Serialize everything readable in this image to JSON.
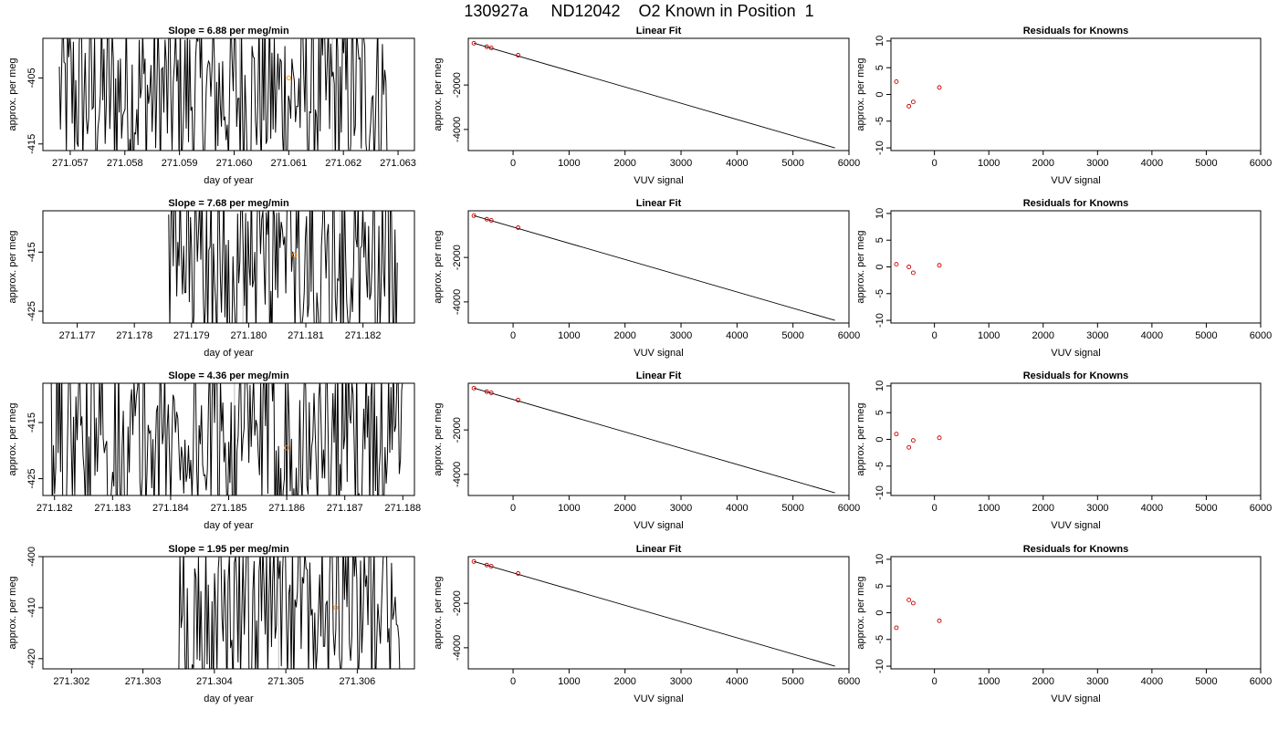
{
  "page": {
    "title": "130927a     ND12042    O2 Known in Position  1"
  },
  "colors": {
    "line": "#000000",
    "known_point": "#cc0000",
    "marker_point": "#ff8c00",
    "vline": "#bebebe"
  },
  "chart_data": [
    {
      "row": 1,
      "type": "line",
      "kind": "timeseries",
      "title": "Slope =  6.88  per meg/min",
      "xlabel": "day of year",
      "ylabel": "approx. per meg",
      "xlim": [
        271.0565,
        271.0633
      ],
      "ylim": [
        -416,
        -399
      ],
      "xticks": [
        "271.057",
        "271.058",
        "271.059",
        "271.060",
        "271.061",
        "271.062",
        "271.063"
      ],
      "yticks": [
        "-405",
        "-415"
      ],
      "xtick_values": [
        271.057,
        271.058,
        271.059,
        271.06,
        271.061,
        271.062,
        271.063
      ],
      "ytick_values": [
        -405,
        -415
      ],
      "series_start": 271.0568,
      "series_end": 271.0628,
      "series_points": 280,
      "vlines": [
        271.0601,
        271.0618
      ],
      "marker": {
        "x": 271.061,
        "y": -405
      }
    },
    {
      "row": 1,
      "type": "scatter",
      "kind": "linear_fit",
      "title": "Linear Fit",
      "xlabel": "VUV signal",
      "ylabel": "approx. per meg",
      "xlim": [
        -800,
        6000
      ],
      "ylim": [
        -4950,
        100
      ],
      "xticks": [
        "0",
        "1000",
        "2000",
        "3000",
        "4000",
        "5000",
        "6000"
      ],
      "yticks": [
        "-2000",
        "-4000"
      ],
      "xtick_values": [
        0,
        1000,
        2000,
        3000,
        4000,
        5000,
        6000
      ],
      "ytick_values": [
        -2000,
        -4000
      ],
      "points": [
        {
          "x": -700,
          "y": -120
        },
        {
          "x": -470,
          "y": -280
        },
        {
          "x": -390,
          "y": -330
        },
        {
          "x": 90,
          "y": -660
        }
      ],
      "fit_line": {
        "x": [
          -700,
          5750
        ],
        "y": [
          -120,
          -4830
        ]
      }
    },
    {
      "row": 1,
      "type": "scatter",
      "kind": "residuals",
      "title": "Residuals for Knowns",
      "xlabel": "VUV signal",
      "ylabel": "approx. per meg",
      "xlim": [
        -800,
        6000
      ],
      "ylim": [
        -10.5,
        10.5
      ],
      "xticks": [
        "0",
        "1000",
        "2000",
        "3000",
        "4000",
        "5000",
        "6000"
      ],
      "yticks": [
        "-10",
        "-5",
        "0",
        "5",
        "10"
      ],
      "xtick_values": [
        0,
        1000,
        2000,
        3000,
        4000,
        5000,
        6000
      ],
      "ytick_values": [
        -10,
        -5,
        0,
        5,
        10
      ],
      "points": [
        {
          "x": -700,
          "y": 2.4
        },
        {
          "x": -470,
          "y": -2.2
        },
        {
          "x": -390,
          "y": -1.4
        },
        {
          "x": 90,
          "y": 1.3
        }
      ]
    },
    {
      "row": 2,
      "type": "line",
      "kind": "timeseries",
      "title": "Slope =  7.68  per meg/min",
      "xlabel": "day of year",
      "ylabel": "approx. per meg",
      "xlim": [
        271.1764,
        271.1829
      ],
      "ylim": [
        -427,
        -408
      ],
      "xticks": [
        "271.177",
        "271.178",
        "271.179",
        "271.180",
        "271.181",
        "271.182"
      ],
      "yticks": [
        "-415",
        "-425"
      ],
      "xtick_values": [
        271.177,
        271.178,
        271.179,
        271.18,
        271.181,
        271.182
      ],
      "ytick_values": [
        -415,
        -425
      ],
      "series_start": 271.1786,
      "series_end": 271.1826,
      "series_points": 200,
      "vlines": [
        271.1799,
        271.1816
      ],
      "marker": {
        "x": 271.1808,
        "y": -415.5
      }
    },
    {
      "row": 2,
      "type": "scatter",
      "kind": "linear_fit",
      "title": "Linear Fit",
      "xlabel": "VUV signal",
      "ylabel": "approx. per meg",
      "xlim": [
        -800,
        6000
      ],
      "ylim": [
        -4950,
        100
      ],
      "xticks": [
        "0",
        "1000",
        "2000",
        "3000",
        "4000",
        "5000",
        "6000"
      ],
      "yticks": [
        "-2000",
        "-4000"
      ],
      "xtick_values": [
        0,
        1000,
        2000,
        3000,
        4000,
        5000,
        6000
      ],
      "ytick_values": [
        -2000,
        -4000
      ],
      "points": [
        {
          "x": -700,
          "y": -120
        },
        {
          "x": -470,
          "y": -280
        },
        {
          "x": -390,
          "y": -330
        },
        {
          "x": 90,
          "y": -660
        }
      ],
      "fit_line": {
        "x": [
          -700,
          5750
        ],
        "y": [
          -120,
          -4830
        ]
      }
    },
    {
      "row": 2,
      "type": "scatter",
      "kind": "residuals",
      "title": "Residuals for Knowns",
      "xlabel": "VUV signal",
      "ylabel": "approx. per meg",
      "xlim": [
        -800,
        6000
      ],
      "ylim": [
        -10.5,
        10.5
      ],
      "xticks": [
        "0",
        "1000",
        "2000",
        "3000",
        "4000",
        "5000",
        "6000"
      ],
      "yticks": [
        "-10",
        "-5",
        "0",
        "5",
        "10"
      ],
      "xtick_values": [
        0,
        1000,
        2000,
        3000,
        4000,
        5000,
        6000
      ],
      "ytick_values": [
        -10,
        -5,
        0,
        5,
        10
      ],
      "points": [
        {
          "x": -700,
          "y": 0.5
        },
        {
          "x": -470,
          "y": 0.0
        },
        {
          "x": -390,
          "y": -1.1
        },
        {
          "x": 90,
          "y": 0.3
        }
      ]
    },
    {
      "row": 3,
      "type": "line",
      "kind": "timeseries",
      "title": "Slope =  4.36  per meg/min",
      "xlabel": "day of year",
      "ylabel": "approx. per meg",
      "xlim": [
        271.1818,
        271.1882
      ],
      "ylim": [
        -428,
        -408
      ],
      "xticks": [
        "271.182",
        "271.183",
        "271.184",
        "271.185",
        "271.186",
        "271.187",
        "271.188"
      ],
      "yticks": [
        "-415",
        "-425"
      ],
      "xtick_values": [
        271.182,
        271.183,
        271.184,
        271.185,
        271.186,
        271.187,
        271.188
      ],
      "ytick_values": [
        -415,
        -425
      ],
      "series_start": 271.1819,
      "series_end": 271.188,
      "series_points": 300,
      "vlines": [
        271.1851
      ],
      "marker": {
        "x": 271.186,
        "y": -419.5
      }
    },
    {
      "row": 3,
      "type": "scatter",
      "kind": "linear_fit",
      "title": "Linear Fit",
      "xlabel": "VUV signal",
      "ylabel": "approx. per meg",
      "xlim": [
        -800,
        6000
      ],
      "ylim": [
        -4950,
        100
      ],
      "xticks": [
        "0",
        "1000",
        "2000",
        "3000",
        "4000",
        "5000",
        "6000"
      ],
      "yticks": [
        "-2000",
        "-4000"
      ],
      "xtick_values": [
        0,
        1000,
        2000,
        3000,
        4000,
        5000,
        6000
      ],
      "ytick_values": [
        -2000,
        -4000
      ],
      "points": [
        {
          "x": -700,
          "y": -120
        },
        {
          "x": -470,
          "y": -280
        },
        {
          "x": -390,
          "y": -330
        },
        {
          "x": 90,
          "y": -660
        }
      ],
      "fit_line": {
        "x": [
          -700,
          5750
        ],
        "y": [
          -120,
          -4830
        ]
      }
    },
    {
      "row": 3,
      "type": "scatter",
      "kind": "residuals",
      "title": "Residuals for Knowns",
      "xlabel": "VUV signal",
      "ylabel": "approx. per meg",
      "xlim": [
        -800,
        6000
      ],
      "ylim": [
        -10.5,
        10.5
      ],
      "xticks": [
        "0",
        "1000",
        "2000",
        "3000",
        "4000",
        "5000",
        "6000"
      ],
      "yticks": [
        "-10",
        "-5",
        "0",
        "5",
        "10"
      ],
      "xtick_values": [
        0,
        1000,
        2000,
        3000,
        4000,
        5000,
        6000
      ],
      "ytick_values": [
        -10,
        -5,
        0,
        5,
        10
      ],
      "points": [
        {
          "x": -700,
          "y": 1.0
        },
        {
          "x": -470,
          "y": -1.5
        },
        {
          "x": -390,
          "y": -0.2
        },
        {
          "x": 90,
          "y": 0.3
        }
      ]
    },
    {
      "row": 4,
      "type": "line",
      "kind": "timeseries",
      "title": "Slope =  1.95  per meg/min",
      "xlabel": "day of year",
      "ylabel": "approx. per meg",
      "xlim": [
        271.3016,
        271.3068
      ],
      "ylim": [
        -422,
        -400
      ],
      "xticks": [
        "271.302",
        "271.303",
        "271.304",
        "271.305",
        "271.306"
      ],
      "yticks": [
        "-400",
        "-410",
        "-420"
      ],
      "xtick_values": [
        271.302,
        271.303,
        271.304,
        271.305,
        271.306
      ],
      "ytick_values": [
        -400,
        -410,
        -420
      ],
      "series_start": 271.3035,
      "series_end": 271.3066,
      "series_points": 180,
      "vlines": [
        271.3049
      ],
      "marker": {
        "x": 271.3057,
        "y": -410
      }
    },
    {
      "row": 4,
      "type": "scatter",
      "kind": "linear_fit",
      "title": "Linear Fit",
      "xlabel": "VUV signal",
      "ylabel": "approx. per meg",
      "xlim": [
        -800,
        6000
      ],
      "ylim": [
        -4950,
        100
      ],
      "xticks": [
        "0",
        "1000",
        "2000",
        "3000",
        "4000",
        "5000",
        "6000"
      ],
      "yticks": [
        "-2000",
        "-4000"
      ],
      "xtick_values": [
        0,
        1000,
        2000,
        3000,
        4000,
        5000,
        6000
      ],
      "ytick_values": [
        -2000,
        -4000
      ],
      "points": [
        {
          "x": -700,
          "y": -120
        },
        {
          "x": -470,
          "y": -280
        },
        {
          "x": -390,
          "y": -330
        },
        {
          "x": 90,
          "y": -660
        }
      ],
      "fit_line": {
        "x": [
          -700,
          5750
        ],
        "y": [
          -120,
          -4830
        ]
      }
    },
    {
      "row": 4,
      "type": "scatter",
      "kind": "residuals",
      "title": "Residuals for Knowns",
      "xlabel": "VUV signal",
      "ylabel": "approx. per meg",
      "xlim": [
        -800,
        6000
      ],
      "ylim": [
        -10.5,
        10.5
      ],
      "xticks": [
        "0",
        "1000",
        "2000",
        "3000",
        "4000",
        "5000",
        "6000"
      ],
      "yticks": [
        "-10",
        "-5",
        "0",
        "5",
        "10"
      ],
      "xtick_values": [
        0,
        1000,
        2000,
        3000,
        4000,
        5000,
        6000
      ],
      "ytick_values": [
        -10,
        -5,
        0,
        5,
        10
      ],
      "points": [
        {
          "x": -700,
          "y": -2.8
        },
        {
          "x": -470,
          "y": 2.4
        },
        {
          "x": -390,
          "y": 1.8
        },
        {
          "x": 90,
          "y": -1.5
        }
      ]
    }
  ]
}
